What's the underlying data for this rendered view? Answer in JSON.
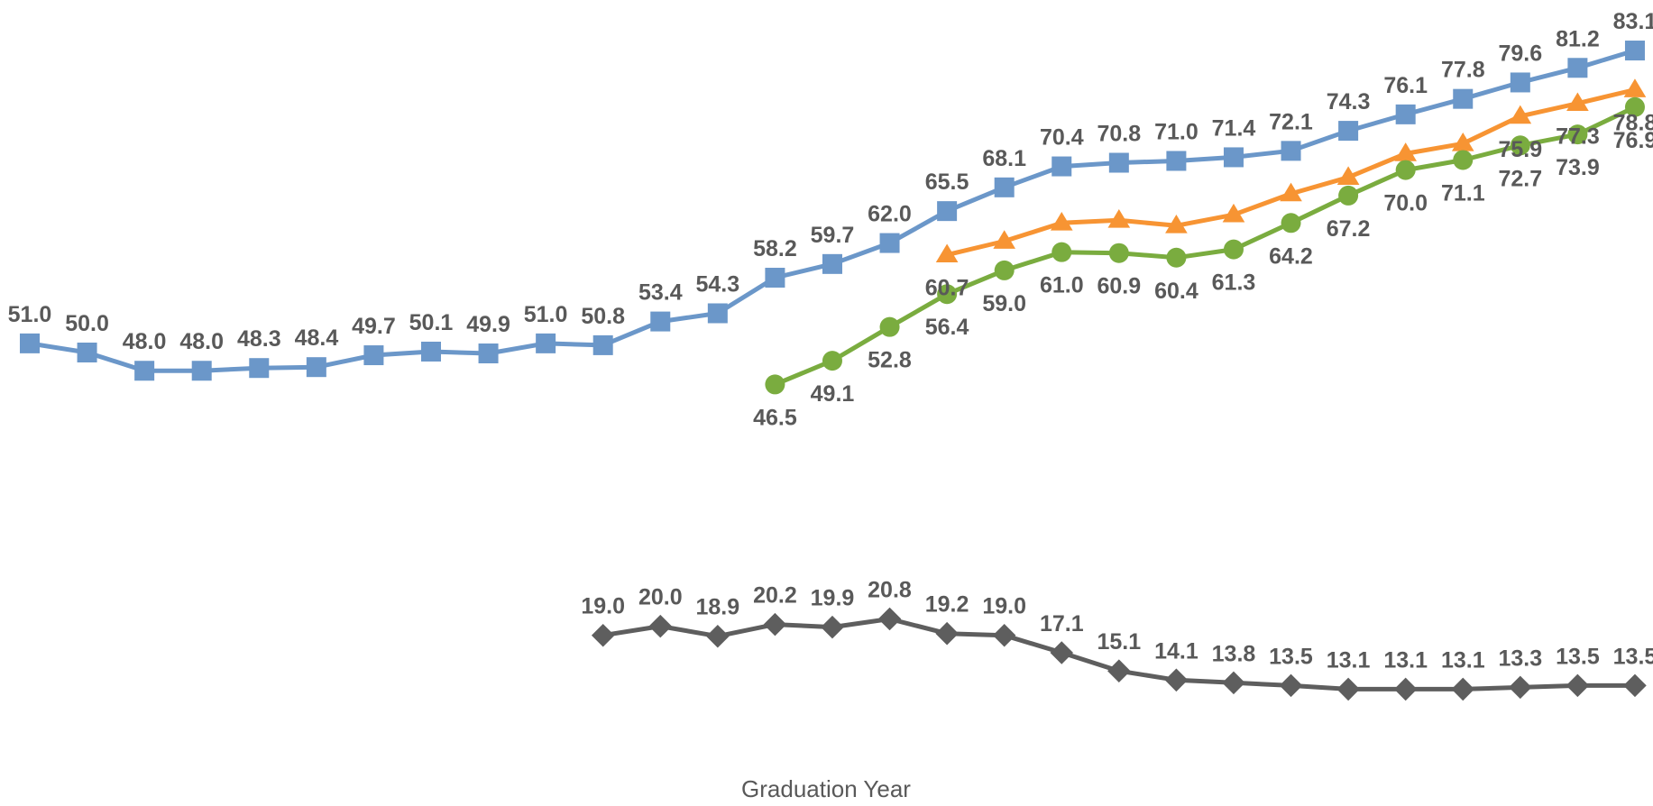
{
  "chart_data": {
    "type": "line",
    "title": "",
    "xlabel": "Graduation Year",
    "ylabel": "",
    "x_index": [
      1,
      2,
      3,
      4,
      5,
      6,
      7,
      8,
      9,
      10,
      11,
      12,
      13,
      14,
      15,
      16,
      17,
      18,
      19,
      20,
      21,
      22,
      23,
      24,
      25,
      26,
      27,
      28,
      29
    ],
    "ylim": [
      0,
      100
    ],
    "grid": false,
    "legend": "none",
    "series": [
      {
        "color": "#6b97c9",
        "marker": "square",
        "label_position": "above",
        "values": [
          51.0,
          50.0,
          48.0,
          48.0,
          48.3,
          48.4,
          49.7,
          50.1,
          49.9,
          51.0,
          50.8,
          53.4,
          54.3,
          58.2,
          59.7,
          62.0,
          65.5,
          68.1,
          70.4,
          70.8,
          71.0,
          71.4,
          72.1,
          74.3,
          76.1,
          77.8,
          79.6,
          81.2,
          83.1
        ],
        "labels": [
          "51.0",
          "50.0",
          "48.0",
          "48.0",
          "48.3",
          "48.4",
          "49.7",
          "50.1",
          "49.9",
          "51.0",
          "50.8",
          "53.4",
          "54.3",
          "58.2",
          "59.7",
          "62.0",
          "65.5",
          "68.1",
          "70.4",
          "70.8",
          "71.0",
          "71.4",
          "72.1",
          "74.3",
          "76.1",
          "77.8",
          "79.6",
          "81.2",
          "83.1"
        ]
      },
      {
        "color": "#f79433",
        "marker": "triangle",
        "label_position": "below",
        "values": [
          null,
          null,
          null,
          null,
          null,
          null,
          null,
          null,
          null,
          null,
          null,
          null,
          null,
          null,
          null,
          null,
          60.7,
          62.2,
          64.2,
          64.5,
          63.9,
          65.1,
          67.4,
          69.2,
          71.8,
          72.9,
          75.9,
          77.3,
          78.8
        ],
        "labels": [
          null,
          null,
          null,
          null,
          null,
          null,
          null,
          null,
          null,
          null,
          null,
          null,
          null,
          null,
          null,
          null,
          "60.7",
          null,
          null,
          null,
          null,
          null,
          null,
          null,
          null,
          null,
          "75.9",
          "77.3",
          "78.8"
        ]
      },
      {
        "color": "#7aac3f",
        "marker": "circle",
        "label_position": "below",
        "values": [
          null,
          null,
          null,
          null,
          null,
          null,
          null,
          null,
          null,
          null,
          null,
          null,
          null,
          46.5,
          49.1,
          52.8,
          56.4,
          59.0,
          61.0,
          60.9,
          60.4,
          61.3,
          64.2,
          67.2,
          70.0,
          71.1,
          72.7,
          73.9,
          76.9
        ],
        "labels": [
          null,
          null,
          null,
          null,
          null,
          null,
          null,
          null,
          null,
          null,
          null,
          null,
          null,
          "46.5",
          "49.1",
          "52.8",
          "56.4",
          "59.0",
          "61.0",
          "60.9",
          "60.4",
          "61.3",
          "64.2",
          "67.2",
          "70.0",
          "71.1",
          "72.7",
          "73.9",
          "76.9"
        ]
      },
      {
        "color": "#5e5e5e",
        "marker": "diamond",
        "label_position": "above",
        "values": [
          null,
          null,
          null,
          null,
          null,
          null,
          null,
          null,
          null,
          null,
          19.0,
          20.0,
          18.9,
          20.2,
          19.9,
          20.8,
          19.2,
          19.0,
          17.1,
          15.1,
          14.1,
          13.8,
          13.5,
          13.1,
          13.1,
          13.1,
          13.3,
          13.5,
          13.5
        ],
        "labels": [
          null,
          null,
          null,
          null,
          null,
          null,
          null,
          null,
          null,
          null,
          "19.0",
          "20.0",
          "18.9",
          "20.2",
          "19.9",
          "20.8",
          "19.2",
          "19.0",
          "17.1",
          "15.1",
          "14.1",
          "13.8",
          "13.5",
          "13.1",
          "13.1",
          "13.1",
          "13.3",
          "13.5",
          "13.5"
        ]
      }
    ]
  }
}
